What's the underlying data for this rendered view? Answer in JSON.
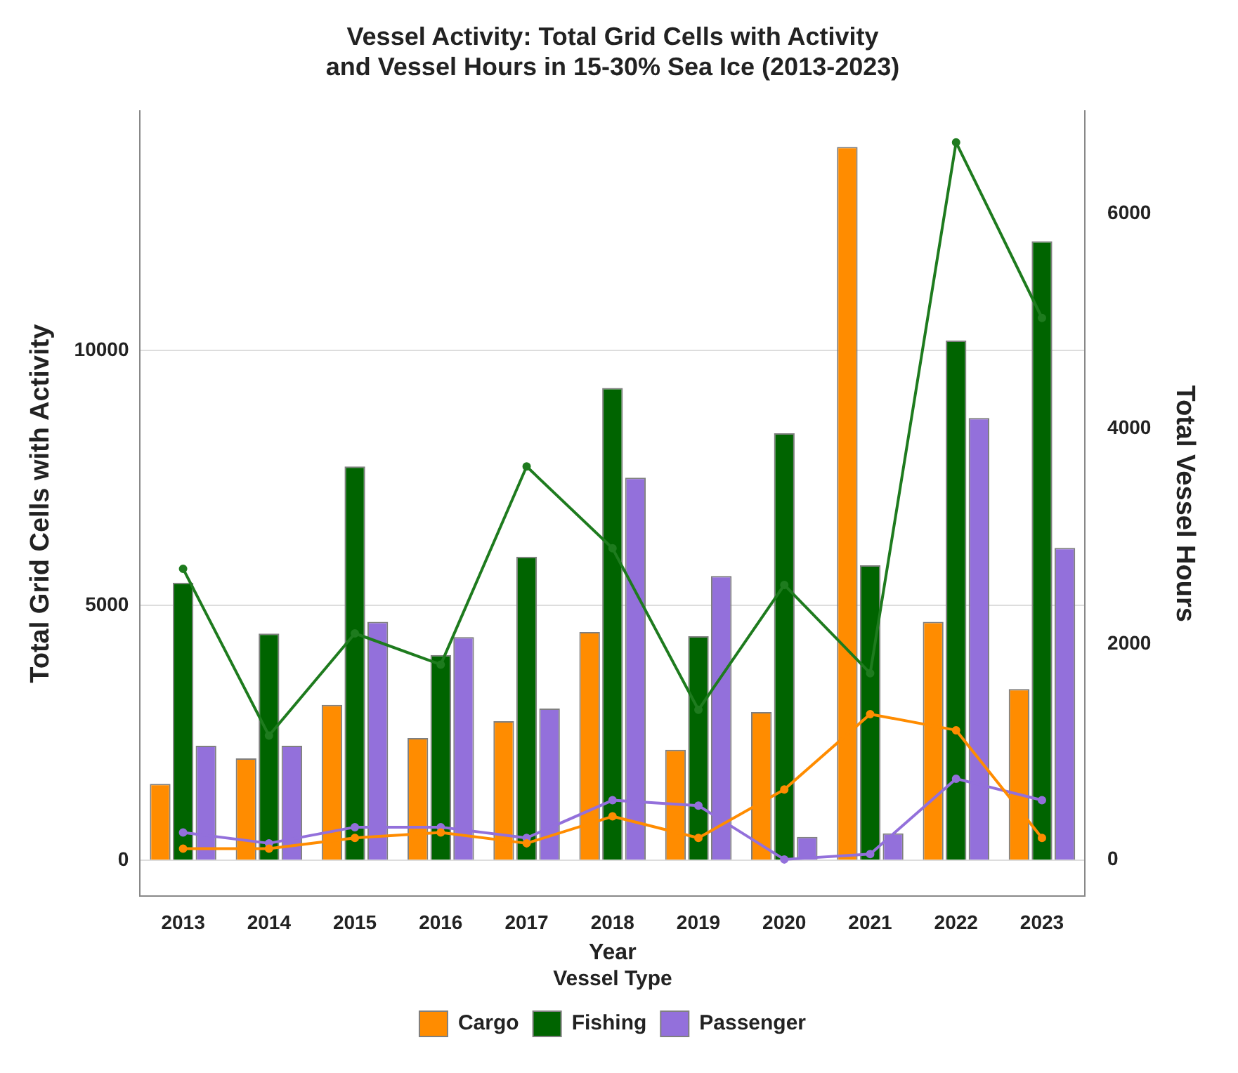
{
  "chart_data": {
    "type": "bar",
    "title": "Vessel Activity: Total Grid Cells with Activity and Vessel Hours in 15-30% Sea Ice (2013-2023)",
    "xlabel": "Year",
    "ylabel": "Total Grid Cells with Activity",
    "y2label": "Total Vessel Hours",
    "legend_title": "Vessel Type",
    "categories": [
      "2013",
      "2014",
      "2015",
      "2016",
      "2017",
      "2018",
      "2019",
      "2020",
      "2021",
      "2022",
      "2023"
    ],
    "series": [
      {
        "name": "Cargo",
        "color": "#ff8c00",
        "values": [
          1500,
          2000,
          3050,
          2400,
          2730,
          4480,
          2170,
          2910,
          14000,
          4680,
          3360
        ]
      },
      {
        "name": "Fishing",
        "color": "#006400",
        "values": [
          5450,
          4450,
          7730,
          4030,
          5960,
          9270,
          4400,
          8380,
          5790,
          10200,
          12150
        ]
      },
      {
        "name": "Passenger",
        "color": "#9370db",
        "values": [
          2250,
          2250,
          4680,
          4380,
          2980,
          7510,
          5580,
          460,
          530,
          8680,
          6130
        ]
      },
      {
        "type": "line",
        "axis": "y2",
        "color": "#ff8c00",
        "values": [
          100,
          100,
          200,
          250,
          150,
          400,
          200,
          650,
          1350,
          1200,
          200
        ]
      },
      {
        "type": "line",
        "axis": "y2",
        "color": "#1e7b1e",
        "values": [
          2700,
          1150,
          2100,
          1810,
          3650,
          2890,
          1390,
          2550,
          1730,
          6660,
          5030
        ]
      },
      {
        "type": "line",
        "axis": "y2",
        "color": "#9370db",
        "values": [
          250,
          150,
          300,
          300,
          200,
          550,
          500,
          0,
          50,
          750,
          550
        ]
      }
    ],
    "ylim": [
      -700,
      14700
    ],
    "yticks": [
      0,
      5000,
      10000
    ],
    "y2lim": [
      -340,
      6950
    ],
    "y2ticks": [
      0,
      2000,
      4000,
      6000
    ],
    "grid": "y",
    "legend": "bottom",
    "marker": "circle"
  }
}
